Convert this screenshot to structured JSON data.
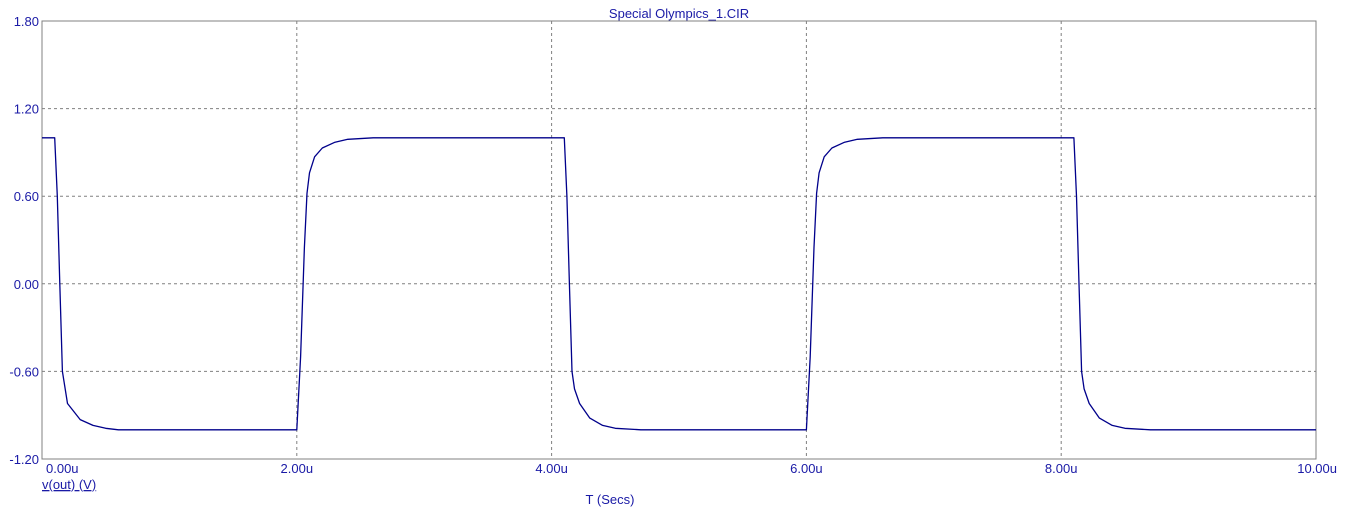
{
  "chart_data": {
    "type": "line",
    "title": "Special Olympics_1.CIR",
    "xlabel": "T (Secs)",
    "ylabel": "",
    "xlim": [
      0,
      10
    ],
    "ylim": [
      -1.2,
      1.8
    ],
    "x_unit": "u",
    "x_ticks": [
      0,
      2,
      4,
      6,
      8,
      10
    ],
    "x_tick_labels": [
      "0.00u",
      "2.00u",
      "4.00u",
      "6.00u",
      "8.00u",
      "10.00u"
    ],
    "y_ticks": [
      -1.2,
      -0.6,
      0.0,
      0.6,
      1.2,
      1.8
    ],
    "y_tick_labels": [
      "-1.20",
      "-0.60",
      "0.00",
      "0.60",
      "1.20",
      "1.80"
    ],
    "grid": true,
    "series": [
      {
        "name": "v(out) (V)",
        "color": "#00008b",
        "x": [
          0.0,
          0.1,
          0.12,
          0.14,
          0.16,
          0.2,
          0.3,
          0.4,
          0.5,
          0.6,
          0.8,
          1.5,
          2.0,
          2.03,
          2.06,
          2.08,
          2.1,
          2.14,
          2.2,
          2.3,
          2.4,
          2.6,
          3.0,
          3.5,
          4.1,
          4.12,
          4.14,
          4.16,
          4.18,
          4.22,
          4.3,
          4.4,
          4.5,
          4.7,
          5.0,
          5.5,
          6.0,
          6.03,
          6.06,
          6.08,
          6.1,
          6.14,
          6.2,
          6.3,
          6.4,
          6.6,
          7.0,
          7.5,
          8.1,
          8.12,
          8.14,
          8.16,
          8.18,
          8.22,
          8.3,
          8.4,
          8.5,
          8.7,
          9.0,
          9.5,
          10.0
        ],
        "values": [
          1.0,
          1.0,
          0.6,
          0.0,
          -0.6,
          -0.82,
          -0.93,
          -0.97,
          -0.99,
          -1.0,
          -1.0,
          -1.0,
          -1.0,
          -0.5,
          0.25,
          0.62,
          0.76,
          0.87,
          0.93,
          0.97,
          0.99,
          1.0,
          1.0,
          1.0,
          1.0,
          0.6,
          0.0,
          -0.6,
          -0.72,
          -0.82,
          -0.92,
          -0.97,
          -0.99,
          -1.0,
          -1.0,
          -1.0,
          -1.0,
          -0.5,
          0.25,
          0.62,
          0.76,
          0.87,
          0.93,
          0.97,
          0.99,
          1.0,
          1.0,
          1.0,
          1.0,
          0.6,
          0.0,
          -0.6,
          -0.72,
          -0.82,
          -0.92,
          -0.97,
          -0.99,
          -1.0,
          -1.0,
          -1.0,
          -1.0
        ]
      }
    ]
  }
}
